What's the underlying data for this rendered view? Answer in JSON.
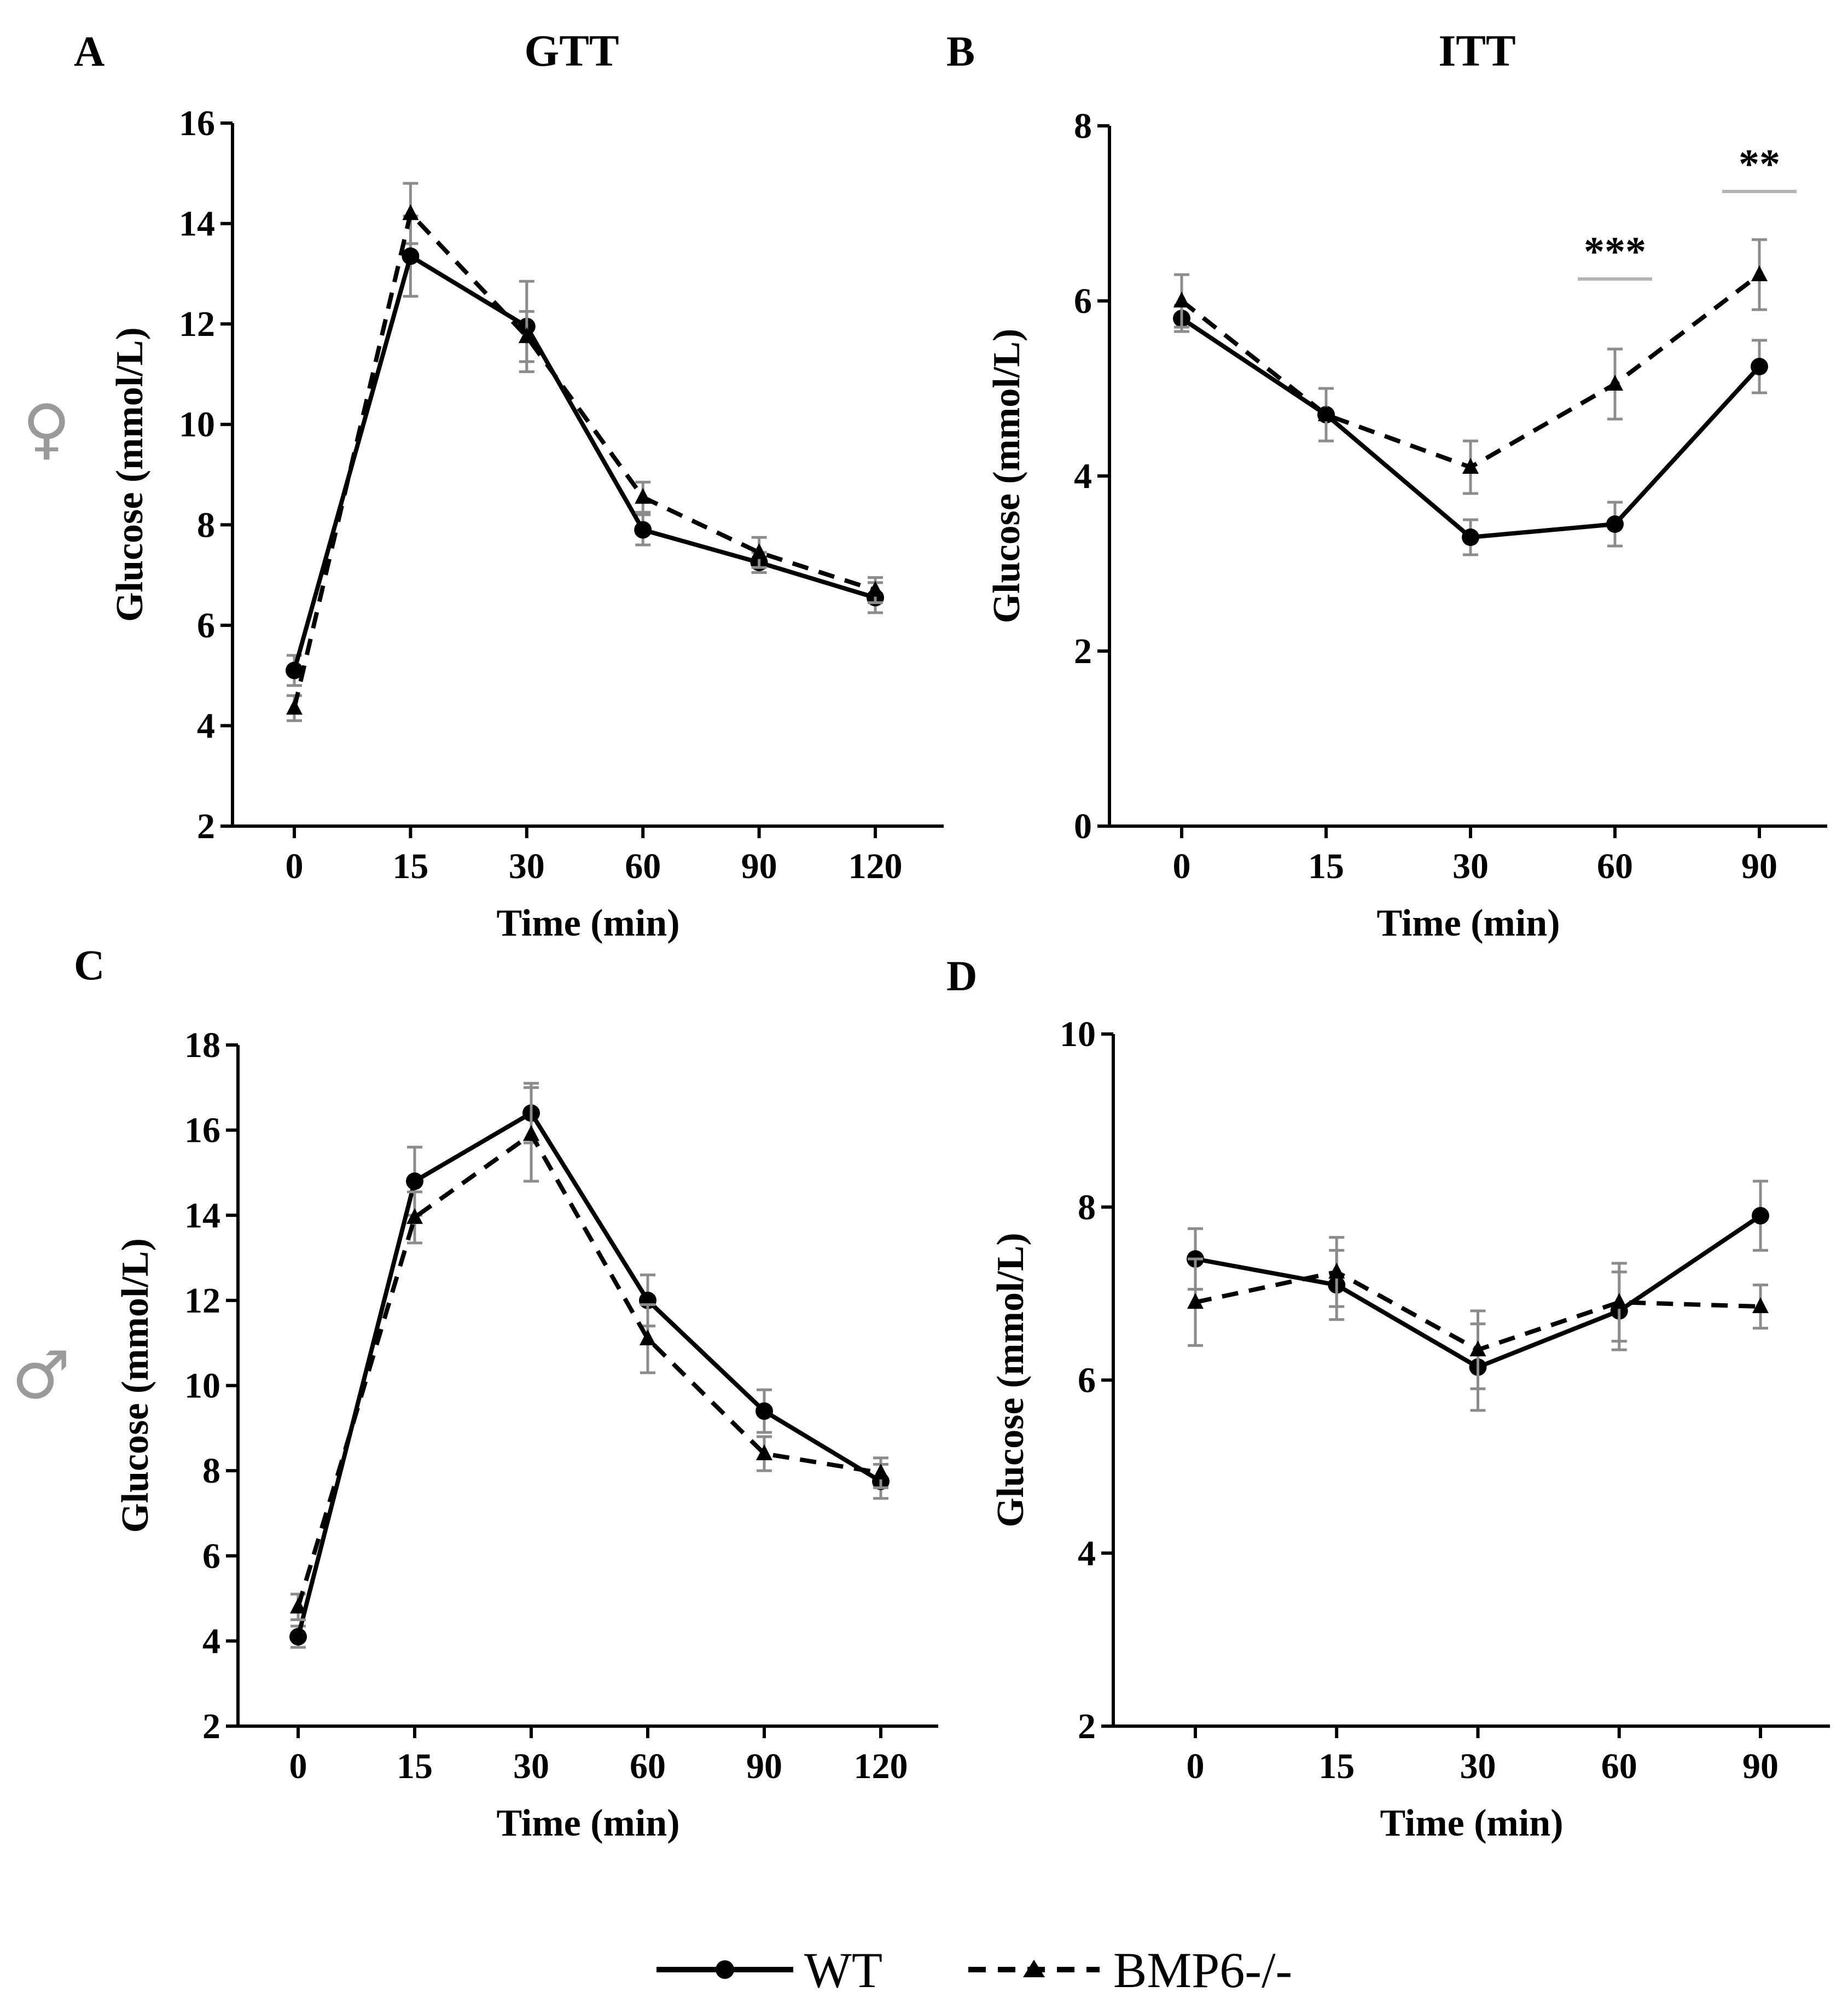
{
  "figure": {
    "sex_labels": {
      "female": "♀",
      "male": "♂"
    },
    "colors": {
      "series": "#000000",
      "error_bar": "#8c8c8c",
      "sig_bar": "#b4b4b4",
      "sex_symbol": "#9a9a9a"
    },
    "legend": [
      {
        "name": "WT",
        "style": "solid",
        "marker": "circle"
      },
      {
        "name": "BMP6-/-",
        "style": "dashed",
        "marker": "triangle"
      }
    ]
  },
  "chart_data": [
    {
      "panel": "A",
      "type": "line",
      "title": "GTT",
      "xlabel": "Time (min)",
      "ylabel": "Glucose (mmol/L)",
      "categories": [
        "0",
        "15",
        "30",
        "60",
        "90",
        "120"
      ],
      "ylim": [
        2,
        16
      ],
      "yticks": [
        2,
        4,
        6,
        8,
        10,
        12,
        14,
        16
      ],
      "sex": "female",
      "series": [
        {
          "name": "WT",
          "values": [
            5.1,
            13.35,
            11.95,
            7.9,
            7.25,
            6.55
          ],
          "errors": [
            0.3,
            0.8,
            0.9,
            0.3,
            0.2,
            0.3
          ]
        },
        {
          "name": "BMP6-/-",
          "values": [
            4.35,
            14.2,
            11.75,
            8.55,
            7.45,
            6.7
          ],
          "errors": [
            0.25,
            0.6,
            0.5,
            0.3,
            0.3,
            0.25
          ]
        }
      ],
      "significance": []
    },
    {
      "panel": "B",
      "type": "line",
      "title": "ITT",
      "xlabel": "Time (min)",
      "ylabel": "Glucose (mmol/L)",
      "categories": [
        "0",
        "15",
        "30",
        "60",
        "90"
      ],
      "ylim": [
        0,
        8
      ],
      "yticks": [
        0,
        2,
        4,
        6,
        8
      ],
      "sex": "female",
      "series": [
        {
          "name": "WT",
          "values": [
            5.8,
            4.7,
            3.3,
            3.45,
            5.25
          ],
          "errors": [
            0.15,
            0.3,
            0.2,
            0.25,
            0.3
          ]
        },
        {
          "name": "BMP6-/-",
          "values": [
            6.0,
            4.7,
            4.1,
            5.05,
            6.3
          ],
          "errors": [
            0.3,
            0.3,
            0.3,
            0.4,
            0.4
          ]
        }
      ],
      "significance": [
        {
          "label": "***",
          "x_index": 3,
          "y": 6.25
        },
        {
          "label": "**",
          "x_index": 4,
          "y": 7.25
        }
      ]
    },
    {
      "panel": "C",
      "type": "line",
      "title": "",
      "xlabel": "Time (min)",
      "ylabel": "Glucose (mmol/L)",
      "categories": [
        "0",
        "15",
        "30",
        "60",
        "90",
        "120"
      ],
      "ylim": [
        2,
        18
      ],
      "yticks": [
        2,
        4,
        6,
        8,
        10,
        12,
        14,
        16,
        18
      ],
      "sex": "male",
      "series": [
        {
          "name": "WT",
          "values": [
            4.1,
            14.8,
            16.4,
            12.0,
            9.4,
            7.75
          ],
          "errors": [
            0.25,
            0.8,
            0.7,
            0.6,
            0.5,
            0.4
          ]
        },
        {
          "name": "BMP6-/-",
          "values": [
            4.8,
            13.95,
            15.9,
            11.1,
            8.4,
            7.95
          ],
          "errors": [
            0.3,
            0.6,
            1.1,
            0.8,
            0.4,
            0.35
          ]
        }
      ],
      "significance": []
    },
    {
      "panel": "D",
      "type": "line",
      "title": "",
      "xlabel": "Time (min)",
      "ylabel": "Glucose (mmol/L)",
      "categories": [
        "0",
        "15",
        "30",
        "60",
        "90"
      ],
      "ylim": [
        2,
        10
      ],
      "yticks": [
        2,
        4,
        6,
        8,
        10
      ],
      "sex": "male",
      "series": [
        {
          "name": "WT",
          "values": [
            7.4,
            7.1,
            6.15,
            6.8,
            7.9
          ],
          "errors": [
            0.35,
            0.4,
            0.5,
            0.45,
            0.4
          ]
        },
        {
          "name": "BMP6-/-",
          "values": [
            6.9,
            7.25,
            6.35,
            6.9,
            6.85
          ],
          "errors": [
            0.5,
            0.4,
            0.45,
            0.45,
            0.25
          ]
        }
      ],
      "significance": []
    }
  ]
}
